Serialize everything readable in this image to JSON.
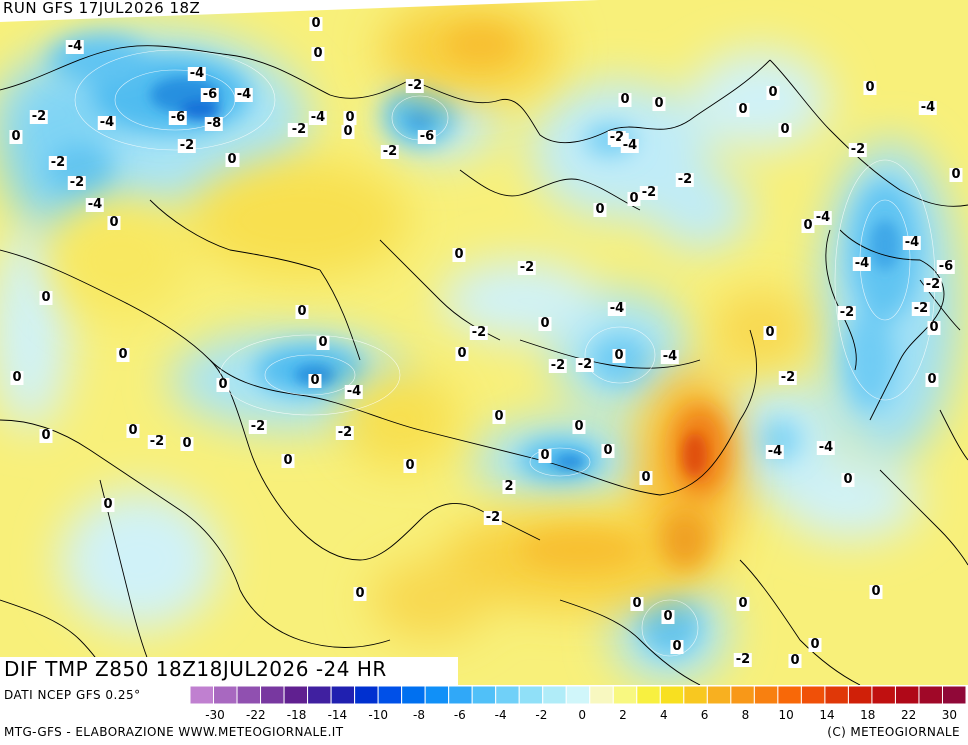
{
  "header": {
    "run_title": "RUN GFS 17JUL2026 18Z"
  },
  "product": {
    "title": "DIF TMP Z850 18Z18JUL2026 -24 HR"
  },
  "source": {
    "label": "DATI NCEP GFS 0.25°"
  },
  "footer": {
    "left": "MTG-GFS - ELABORAZIONE WWW.METEOGIORNALE.IT",
    "right": "(C) METEOGIORNALE"
  },
  "legend": {
    "tick_labels": [
      "-30",
      "-22",
      "-18",
      "-14",
      "-10",
      "-8",
      "-6",
      "-4",
      "-2",
      "0",
      "2",
      "4",
      "6",
      "8",
      "10",
      "14",
      "18",
      "22",
      "30"
    ],
    "colors": [
      "#c080d0",
      "#a868c0",
      "#9050b0",
      "#7838a0",
      "#602090",
      "#4020a0",
      "#2020b0",
      "#0030d0",
      "#0050e8",
      "#0070f0",
      "#1090f8",
      "#30a8f8",
      "#50c0f8",
      "#70d0f8",
      "#90e0f8",
      "#b0ecf8",
      "#d0f6fa",
      "#f8f8c0",
      "#f8f880",
      "#f8f040",
      "#f8e020",
      "#f8c820",
      "#f8b020",
      "#f89818",
      "#f88010",
      "#f86808",
      "#f05008",
      "#e03808",
      "#d02008",
      "#c01010",
      "#b00818",
      "#a00828",
      "#900838"
    ]
  },
  "contour_labels": [
    "-4",
    "-2",
    "0",
    "-4",
    "-6",
    "-4",
    "-6",
    "-8",
    "-4",
    "-2",
    "-2",
    "-4",
    "-2",
    "-2",
    "-4",
    "0",
    "0",
    "0",
    "-2",
    "-6",
    "-2",
    "0",
    "0",
    "-2",
    "0",
    "-4",
    "-2",
    "-4",
    "0",
    "0",
    "-2",
    "0",
    "-2",
    "0",
    "0",
    "0",
    "0",
    "-2",
    "0",
    "-4",
    "-4",
    "0",
    "-4",
    "-2",
    "0",
    "-4",
    "-6",
    "-2",
    "-2",
    "0",
    "0",
    "0",
    "0",
    "0",
    "-2",
    "-4",
    "0",
    "0",
    "-2",
    "0",
    "-2",
    "-2",
    "-4",
    "0",
    "-2",
    "0",
    "0",
    "0",
    "0",
    "0",
    "-2",
    "0",
    "0",
    "0",
    "-4",
    "0",
    "-2",
    "-2",
    "0",
    "0",
    "0",
    "0",
    "0",
    "2",
    "0",
    "0",
    "-4",
    "-4",
    "0",
    "0",
    "-2",
    "0",
    "0",
    "0",
    "0",
    "0",
    "0",
    "0",
    "0",
    "-2"
  ]
}
